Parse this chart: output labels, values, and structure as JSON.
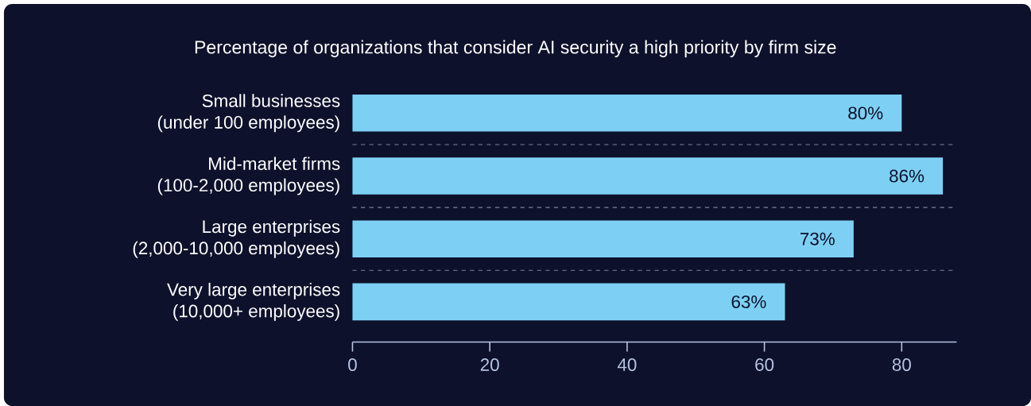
{
  "chart_data": {
    "type": "bar",
    "orientation": "horizontal",
    "title": "Percentage of organizations that consider AI security a high priority by firm size",
    "categories": [
      "Small businesses\n(under 100 employees)",
      "Mid-market firms\n(100-2,000 employees)",
      "Large enterprises\n(2,000-10,000 employees)",
      "Very large enterprises\n(10,000+ employees)"
    ],
    "values": [
      80,
      86,
      73,
      63
    ],
    "value_labels": [
      "80%",
      "86%",
      "73%",
      "63%"
    ],
    "color": "#7dd0f4",
    "xlim": [
      0,
      88
    ],
    "xticks": [
      0,
      20,
      40,
      60,
      80
    ],
    "grid": "y"
  }
}
